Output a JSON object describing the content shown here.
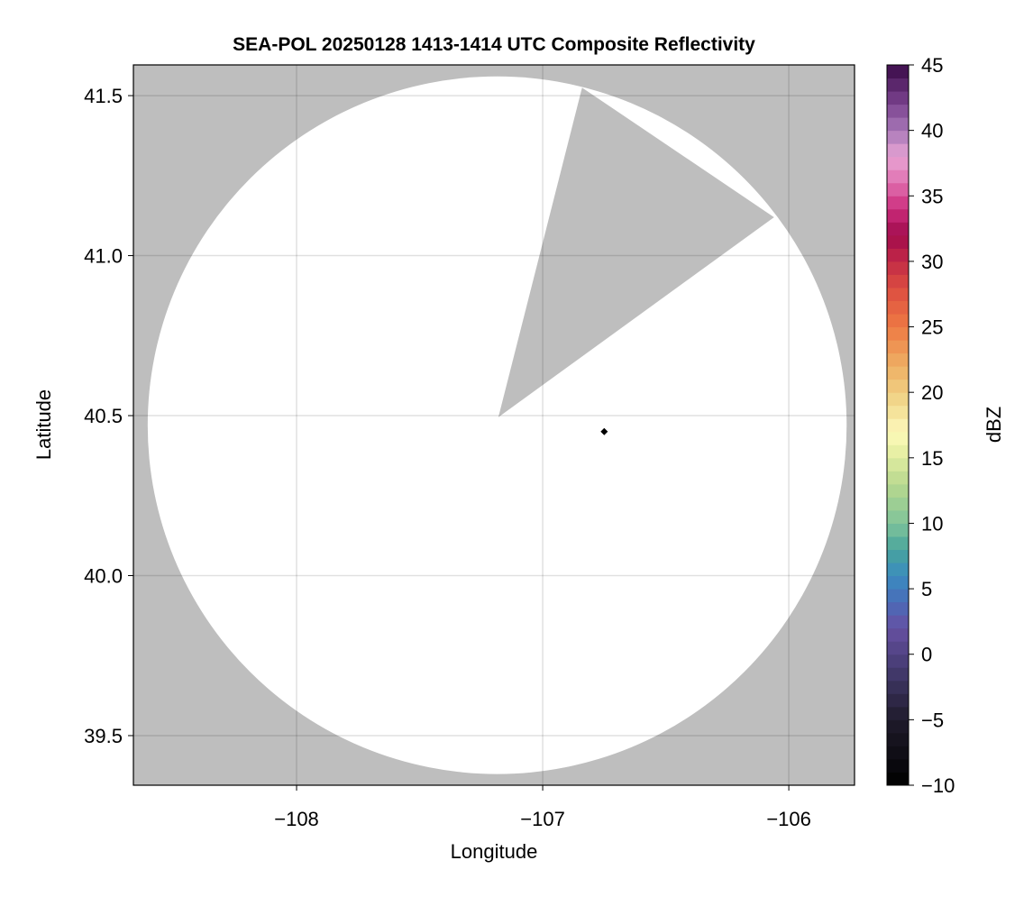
{
  "chart_data": {
    "type": "heatmap",
    "title": "SEA-POL 20250128 1413-1414 UTC Composite Reflectivity",
    "xlabel": "Longitude",
    "ylabel": "Latitude",
    "xlim": [
      -108.663,
      -105.733
    ],
    "ylim": [
      39.345,
      41.596
    ],
    "xticks": [
      -108,
      -107,
      -106
    ],
    "xtick_labels": [
      "−108",
      "−107",
      "−106"
    ],
    "yticks": [
      39.5,
      40.0,
      40.5,
      41.0,
      41.5
    ],
    "ytick_labels": [
      "39.5",
      "40.0",
      "40.5",
      "41.0",
      "41.5"
    ],
    "grid": true,
    "background_color": "#bebebe",
    "no_echo_color": "#ffffff",
    "coverage": {
      "center": [
        -107.185,
        40.47
      ],
      "radius_lon": 1.42,
      "radius_lat": 1.09,
      "blocked_sector": [
        [
          -107.18,
          40.495
        ],
        [
          -106.84,
          41.525
        ],
        [
          -106.06,
          41.12
        ]
      ]
    },
    "markers": [
      {
        "lon": -106.75,
        "lat": 40.45,
        "shape": "diamond",
        "color": "#000000"
      }
    ],
    "colorbar": {
      "label": "dBZ",
      "range": [
        -10,
        45
      ],
      "step": 1,
      "ticks": [
        -10,
        -5,
        0,
        5,
        10,
        15,
        20,
        25,
        30,
        35,
        40,
        45
      ],
      "tick_labels": [
        "−10",
        "−5",
        "0",
        "5",
        "10",
        "15",
        "20",
        "25",
        "30",
        "35",
        "40",
        "45"
      ],
      "colormap_stops": [
        [
          -10,
          "#000000"
        ],
        [
          -5,
          "#1f1b2b"
        ],
        [
          -1,
          "#463c72"
        ],
        [
          2,
          "#6650a2"
        ],
        [
          4,
          "#4a6cb8"
        ],
        [
          6,
          "#3a8cc0"
        ],
        [
          8,
          "#48a49c"
        ],
        [
          10,
          "#80c49a"
        ],
        [
          13,
          "#b8d88e"
        ],
        [
          16,
          "#f2f5aa"
        ],
        [
          17,
          "#fcf8bc"
        ],
        [
          19,
          "#f2dc90"
        ],
        [
          22,
          "#eeb064"
        ],
        [
          25,
          "#ee7a44"
        ],
        [
          28,
          "#dc4c40"
        ],
        [
          31,
          "#b41a4a"
        ],
        [
          32,
          "#a00c4c"
        ],
        [
          34,
          "#cc2c7c"
        ],
        [
          36,
          "#e070b0"
        ],
        [
          38,
          "#e8a4d4"
        ],
        [
          40,
          "#a878b8"
        ],
        [
          42,
          "#7c4490"
        ],
        [
          45,
          "#3a0a48"
        ]
      ]
    }
  }
}
